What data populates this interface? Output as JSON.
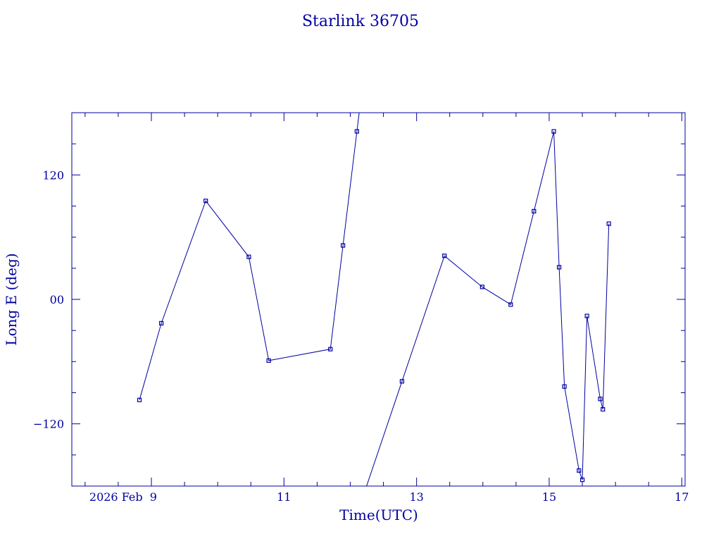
{
  "chart_data": {
    "type": "line",
    "title": "Starlink 36705",
    "xlabel": "Time(UTC)",
    "ylabel": "Long E (deg)",
    "x_ticks": [
      {
        "value": 9,
        "label": "2026 Feb  9"
      },
      {
        "value": 11,
        "label": "11"
      },
      {
        "value": 13,
        "label": "13"
      },
      {
        "value": 15,
        "label": "15"
      },
      {
        "value": 17,
        "label": "17"
      }
    ],
    "y_ticks": [
      {
        "value": 120,
        "label": "120"
      },
      {
        "value": 0,
        "label": "00"
      },
      {
        "value": -120,
        "label": "−120"
      }
    ],
    "xlim": [
      7.8,
      17.05
    ],
    "ylim": [
      -180,
      180
    ],
    "color": "#0000a0",
    "series": [
      {
        "x": [
          8.82,
          9.15,
          9.82,
          10.47,
          10.77,
          11.7,
          11.89,
          12.1
        ],
        "y": [
          -97,
          -23,
          95,
          41,
          -59,
          -48,
          52,
          162
        ]
      },
      {
        "x": [
          12.78,
          13.42,
          13.99,
          14.42,
          14.77,
          15.07,
          15.15,
          15.23,
          15.45,
          15.5,
          15.57,
          15.77,
          15.81,
          15.9
        ],
        "y": [
          -79,
          42,
          12,
          -5,
          85,
          162,
          31,
          -84,
          -165,
          -174,
          -16,
          -96,
          -106,
          73
        ]
      }
    ]
  }
}
